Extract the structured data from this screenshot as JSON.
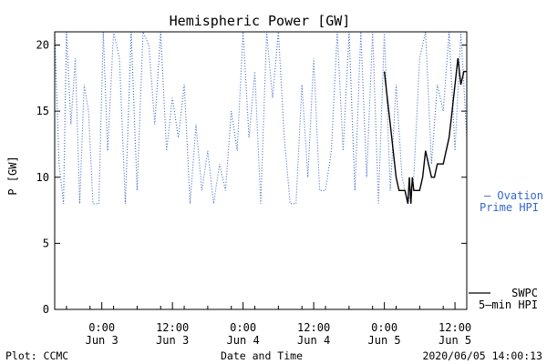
{
  "chart_data": {
    "type": "line",
    "title": "Hemispheric Power [GW]",
    "xlabel": "Date and Time",
    "ylabel": "P [GW]",
    "ylim": [
      0,
      21
    ],
    "xlim": [
      "2020-06-02 16:00",
      "2020-06-05 14:00"
    ],
    "yticks": [
      0,
      5,
      10,
      15,
      20
    ],
    "xticks": [
      {
        "t": "2020-06-03 00:00",
        "time": "0:00",
        "date": "Jun 3"
      },
      {
        "t": "2020-06-03 12:00",
        "time": "12:00",
        "date": "Jun 3"
      },
      {
        "t": "2020-06-04 00:00",
        "time": "0:00",
        "date": "Jun 4"
      },
      {
        "t": "2020-06-04 12:00",
        "time": "12:00",
        "date": "Jun 4"
      },
      {
        "t": "2020-06-05 00:00",
        "time": "0:00",
        "date": "Jun 5"
      },
      {
        "t": "2020-06-05 12:00",
        "time": "12:00",
        "date": "Jun 5"
      }
    ],
    "grid": false,
    "legend_position": "right",
    "series": [
      {
        "name": "Ovation Prime HPI",
        "legend_lines": [
          "— Ovation",
          "Prime HPI"
        ],
        "style": "dotted",
        "color": "#3366cc",
        "x": [
          "2020-06-02 16:00",
          "2020-06-02 16:45",
          "2020-06-02 17:30",
          "2020-06-02 18:00",
          "2020-06-02 18:45",
          "2020-06-02 19:30",
          "2020-06-02 20:15",
          "2020-06-02 21:00",
          "2020-06-02 21:45",
          "2020-06-02 22:30",
          "2020-06-02 23:00",
          "2020-06-02 23:30",
          "2020-06-03 00:15",
          "2020-06-03 01:00",
          "2020-06-03 02:00",
          "2020-06-03 03:00",
          "2020-06-03 04:00",
          "2020-06-03 05:00",
          "2020-06-03 06:00",
          "2020-06-03 07:00",
          "2020-06-03 08:00",
          "2020-06-03 09:00",
          "2020-06-03 10:00",
          "2020-06-03 11:00",
          "2020-06-03 12:00",
          "2020-06-03 13:00",
          "2020-06-03 14:00",
          "2020-06-03 15:00",
          "2020-06-03 16:00",
          "2020-06-03 17:00",
          "2020-06-03 18:00",
          "2020-06-03 19:00",
          "2020-06-03 20:00",
          "2020-06-03 21:00",
          "2020-06-03 22:00",
          "2020-06-03 23:00",
          "2020-06-04 00:00",
          "2020-06-04 01:00",
          "2020-06-04 02:00",
          "2020-06-04 03:00",
          "2020-06-04 04:00",
          "2020-06-04 05:00",
          "2020-06-04 06:00",
          "2020-06-04 07:00",
          "2020-06-04 08:00",
          "2020-06-04 09:00",
          "2020-06-04 10:00",
          "2020-06-04 11:00",
          "2020-06-04 12:00",
          "2020-06-04 13:00",
          "2020-06-04 14:00",
          "2020-06-04 15:00",
          "2020-06-04 16:00",
          "2020-06-04 17:00",
          "2020-06-04 18:00",
          "2020-06-04 19:00",
          "2020-06-04 20:00",
          "2020-06-04 21:00",
          "2020-06-04 22:00",
          "2020-06-04 23:00",
          "2020-06-05 00:00",
          "2020-06-05 01:00",
          "2020-06-05 02:00",
          "2020-06-05 03:00",
          "2020-06-05 04:00",
          "2020-06-05 05:00",
          "2020-06-05 06:00",
          "2020-06-05 07:00",
          "2020-06-05 08:00",
          "2020-06-05 09:00",
          "2020-06-05 10:00",
          "2020-06-05 11:00",
          "2020-06-05 12:00",
          "2020-06-05 13:00",
          "2020-06-05 14:00"
        ],
        "y": [
          21,
          11,
          8,
          21,
          14,
          19,
          8,
          17,
          15,
          8,
          8,
          8,
          21,
          12,
          21,
          19,
          8,
          21,
          9,
          21,
          20,
          14,
          21,
          12,
          16,
          13,
          17,
          8,
          14,
          9,
          12,
          8,
          11,
          9,
          15,
          12,
          21,
          13,
          18,
          8,
          21,
          16,
          21,
          13,
          8,
          8,
          17,
          10,
          19,
          9,
          9,
          12,
          21,
          12,
          21,
          9,
          21,
          10,
          21,
          8,
          21,
          9,
          17,
          10,
          8,
          10,
          19,
          21,
          11,
          17,
          15,
          21,
          12,
          21,
          13
        ]
      },
      {
        "name": "SWPC 5-min HPI",
        "legend_lines": [
          "SWPC",
          "5–min HPI"
        ],
        "style": "solid",
        "color": "#000000",
        "x": [
          "2020-06-05 00:00",
          "2020-06-05 00:30",
          "2020-06-05 01:00",
          "2020-06-05 01:30",
          "2020-06-05 02:00",
          "2020-06-05 02:30",
          "2020-06-05 03:00",
          "2020-06-05 03:30",
          "2020-06-05 04:00",
          "2020-06-05 04:15",
          "2020-06-05 04:30",
          "2020-06-05 04:45",
          "2020-06-05 05:00",
          "2020-06-05 05:30",
          "2020-06-05 06:00",
          "2020-06-05 06:30",
          "2020-06-05 07:00",
          "2020-06-05 07:30",
          "2020-06-05 08:00",
          "2020-06-05 08:30",
          "2020-06-05 09:00",
          "2020-06-05 09:30",
          "2020-06-05 10:00",
          "2020-06-05 10:30",
          "2020-06-05 11:00",
          "2020-06-05 11:30",
          "2020-06-05 12:00",
          "2020-06-05 12:30",
          "2020-06-05 13:00",
          "2020-06-05 13:30",
          "2020-06-05 14:00"
        ],
        "y": [
          18,
          16,
          14,
          12,
          10,
          9,
          9,
          9,
          8,
          10,
          8,
          10,
          9,
          9,
          9,
          10,
          12,
          11,
          10,
          10,
          11,
          11,
          11,
          12,
          13,
          15,
          17,
          19,
          17,
          18,
          18
        ]
      }
    ]
  },
  "footer": {
    "left": "Plot: CCMC",
    "center": "Date and Time",
    "right": "2020/06/05 14:00:13"
  }
}
